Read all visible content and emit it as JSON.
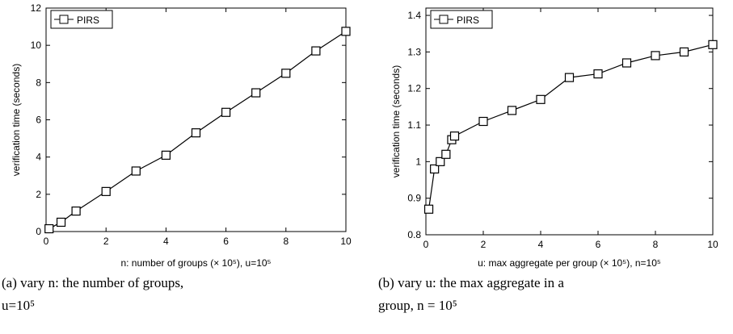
{
  "chart_data": [
    {
      "type": "line",
      "ylabel": "verification time (seconds)",
      "xlabel": "n: number of groups (× 10⁵), u=10⁵",
      "caption": [
        "(a) vary n: the number of groups,",
        "u=10⁵"
      ],
      "x": [
        0.1,
        0.5,
        1,
        2,
        3,
        4,
        5,
        6,
        7,
        8,
        9,
        10
      ],
      "series": [
        {
          "name": "PIRS",
          "color": "#000000",
          "values": [
            0.15,
            0.5,
            1.1,
            2.15,
            3.25,
            4.1,
            5.3,
            6.4,
            7.45,
            8.5,
            9.7,
            10.75
          ]
        }
      ],
      "xlim": [
        0,
        10
      ],
      "xticks": [
        0,
        2,
        4,
        6,
        8,
        10
      ],
      "ylim": [
        0,
        12
      ],
      "yticks": [
        0,
        2,
        4,
        6,
        8,
        10,
        12
      ],
      "legend": "upper left"
    },
    {
      "type": "line",
      "ylabel": "verification time (seconds)",
      "xlabel": "u: max aggregate per group (× 10⁵), n=10⁵",
      "caption": [
        "(b) vary u: the max aggregate in a",
        "group, n = 10⁵"
      ],
      "x": [
        0.1,
        0.3,
        0.5,
        0.7,
        0.9,
        1,
        2,
        3,
        4,
        5,
        6,
        7,
        8,
        9,
        10
      ],
      "series": [
        {
          "name": "PIRS",
          "color": "#000000",
          "values": [
            0.87,
            0.98,
            1.0,
            1.02,
            1.06,
            1.07,
            1.11,
            1.14,
            1.17,
            1.23,
            1.24,
            1.27,
            1.29,
            1.3,
            1.32
          ]
        }
      ],
      "xlim": [
        0,
        10
      ],
      "xticks": [
        0,
        2,
        4,
        6,
        8,
        10
      ],
      "ylim": [
        0.8,
        1.42
      ],
      "yticks": [
        0.8,
        0.9,
        1,
        1.1,
        1.2,
        1.3,
        1.4
      ],
      "legend": "upper left"
    }
  ]
}
